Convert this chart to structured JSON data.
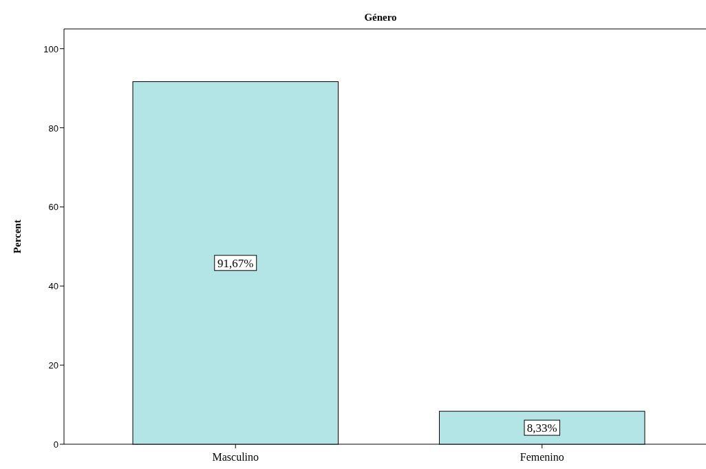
{
  "chart_data": {
    "type": "bar",
    "title": "Género",
    "ylabel": "Percent",
    "categories": [
      "Masculino",
      "Femenino"
    ],
    "values": [
      91.67,
      8.33
    ],
    "value_labels": [
      "91,67%",
      "8,33%"
    ],
    "color": "#b3e5e6",
    "ylim": [
      0,
      105
    ],
    "yticks": [
      0,
      20,
      40,
      60,
      80,
      100
    ],
    "grid": false
  }
}
